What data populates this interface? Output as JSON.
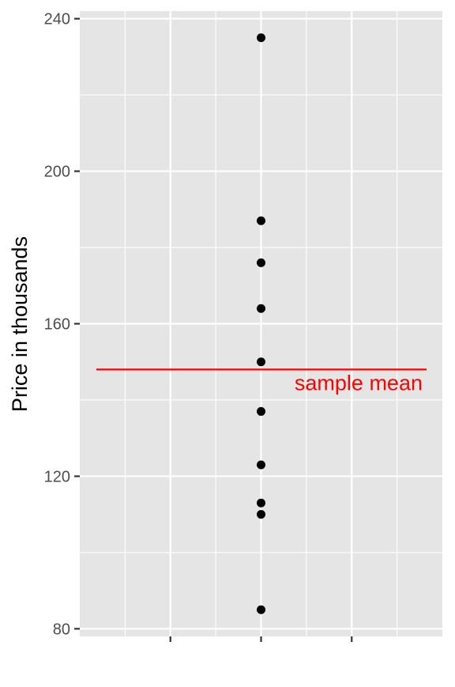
{
  "chart_data": {
    "type": "scatter",
    "title": "",
    "xlabel": "",
    "ylabel": "Price in thousands",
    "ylim": [
      78,
      242
    ],
    "yticks": [
      80,
      120,
      160,
      200,
      240
    ],
    "x_tick_count": 3,
    "points": [
      235,
      187,
      176,
      164,
      150,
      137,
      123,
      113,
      110,
      85
    ],
    "mean_value": 148,
    "mean_label": "sample mean",
    "mean_color": "#ff0000",
    "point_color": "#000000",
    "panel_background": "#e5e5e5",
    "grid": true
  }
}
